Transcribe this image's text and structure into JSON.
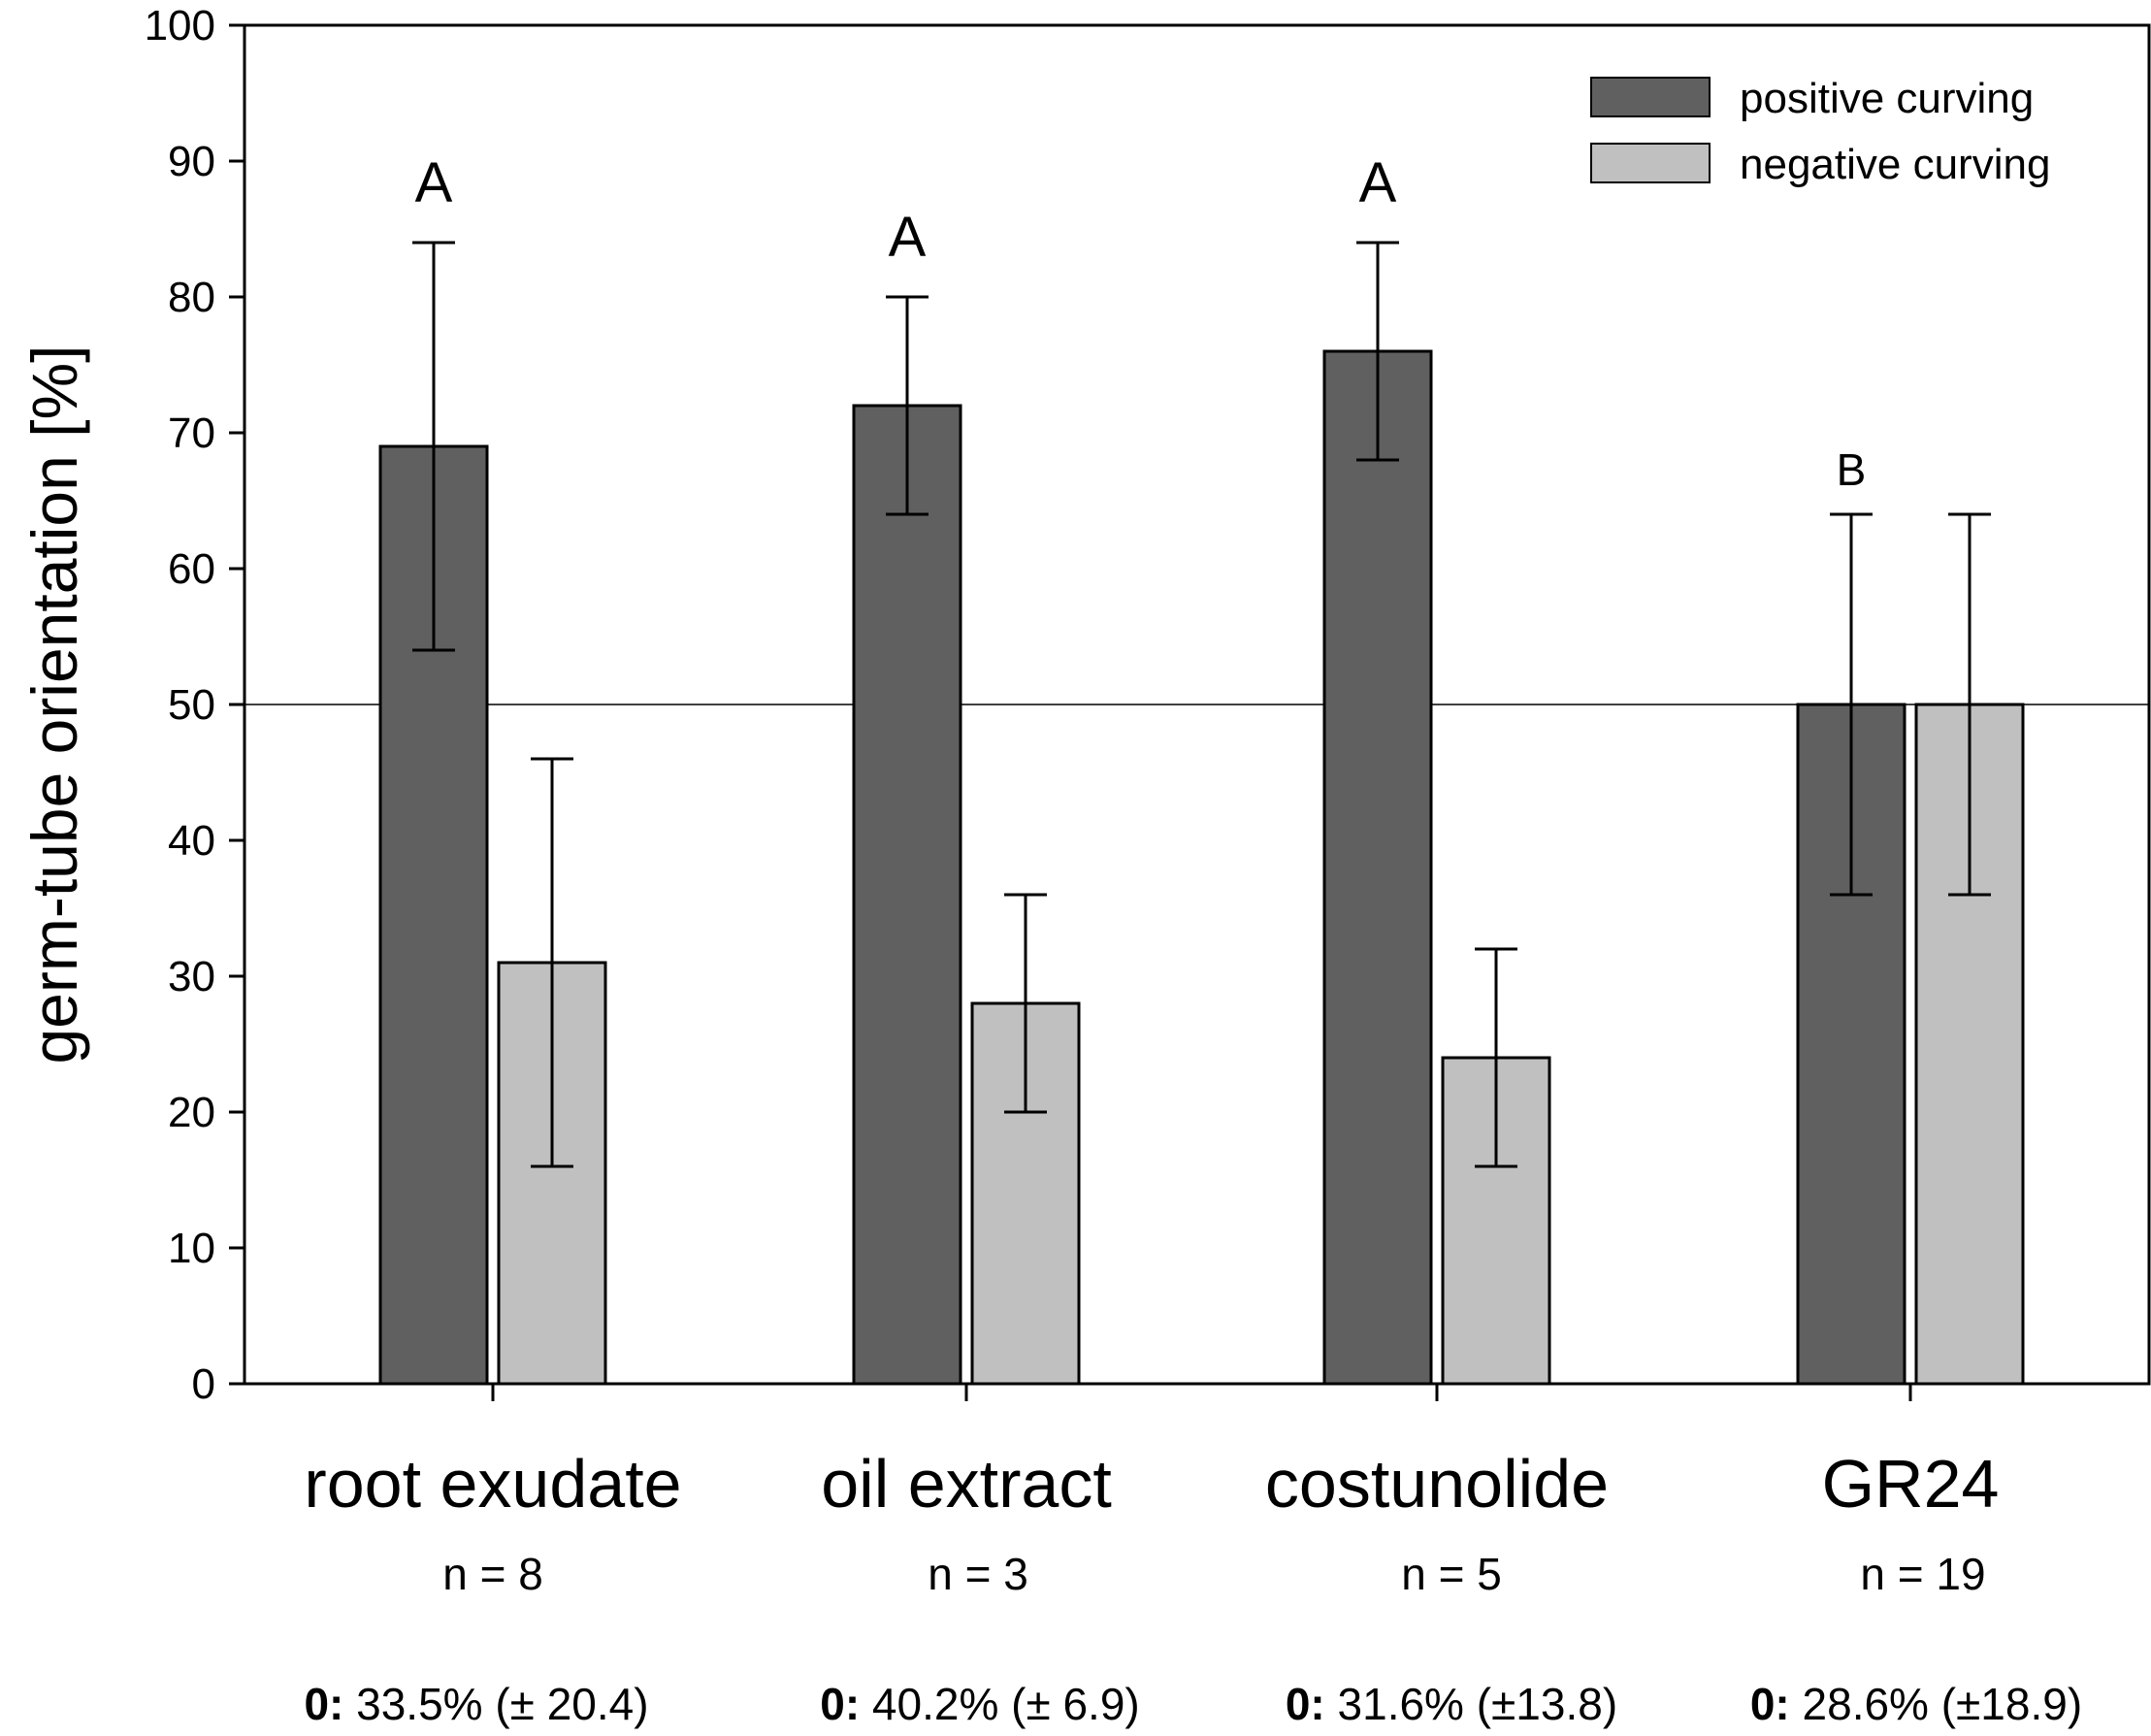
{
  "chart_data": {
    "type": "bar",
    "title": "",
    "xlabel": "",
    "ylabel": "germ-tube orientation [%]",
    "ylim": [
      0,
      100
    ],
    "yticks": [
      0,
      10,
      20,
      30,
      40,
      50,
      60,
      70,
      80,
      90,
      100
    ],
    "reference_line": 50,
    "categories": [
      "root exudate",
      "oil extract",
      "costunolide",
      "GR24"
    ],
    "sample_sizes": [
      "n = 8",
      "n = 3",
      "n = 5",
      "n = 19"
    ],
    "zero_stats": [
      {
        "prefix": "0:",
        "text": "33.5% (± 20.4)"
      },
      {
        "prefix": "0:",
        "text": "40.2% (± 6.9)"
      },
      {
        "prefix": "0:",
        "text": "31.6% (±13.8)"
      },
      {
        "prefix": "0:",
        "text": "28.6% (±18.9)"
      }
    ],
    "significance_letters": [
      "A",
      "A",
      "A",
      "B"
    ],
    "series": [
      {
        "name": "positive curving",
        "color": "#606060",
        "values": [
          69,
          72,
          76,
          50
        ],
        "error_low": [
          54,
          64,
          68,
          36
        ],
        "error_high": [
          84,
          80,
          84,
          64
        ]
      },
      {
        "name": "negative curving",
        "color": "#c0c0c0",
        "values": [
          31,
          28,
          24,
          50
        ],
        "error_low": [
          16,
          20,
          16,
          36
        ],
        "error_high": [
          46,
          36,
          32,
          64
        ]
      }
    ],
    "legend_position": "top-right"
  }
}
